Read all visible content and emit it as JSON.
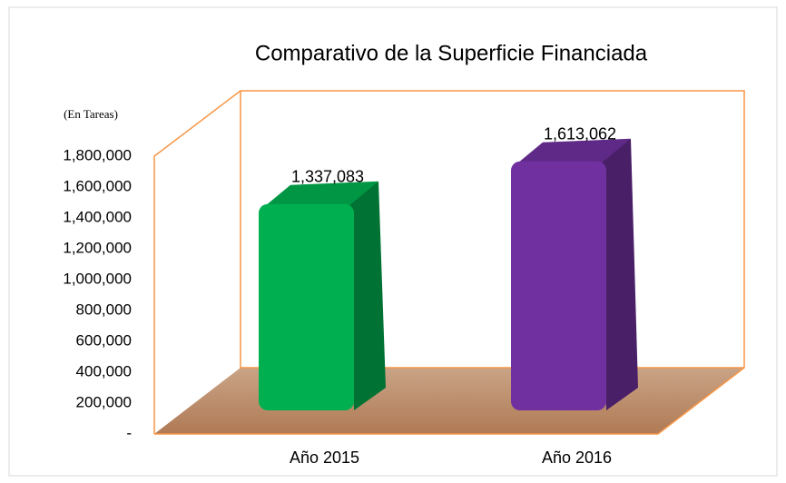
{
  "chart_data": {
    "type": "bar3d",
    "title": "Comparativo de la Superficie Financiada",
    "y_label": "(En Tareas)",
    "categories": [
      "Año 2015",
      "Año 2016"
    ],
    "values": [
      1337083,
      1613062
    ],
    "value_labels": [
      "1,337,083",
      "1,613,062"
    ],
    "colors": [
      "#00b050",
      "#7030a0"
    ],
    "ylim": [
      0,
      1800000
    ],
    "yticks": [
      {
        "value": 0,
        "label": "-"
      },
      {
        "value": 200000,
        "label": "200,000"
      },
      {
        "value": 400000,
        "label": "400,000"
      },
      {
        "value": 600000,
        "label": "600,000"
      },
      {
        "value": 800000,
        "label": "800,000"
      },
      {
        "value": 1000000,
        "label": "1,000,000"
      },
      {
        "value": 1200000,
        "label": "1,200,000"
      },
      {
        "value": 1400000,
        "label": "1,400,000"
      },
      {
        "value": 1600000,
        "label": "1,600,000"
      },
      {
        "value": 1800000,
        "label": "1,800,000"
      }
    ]
  }
}
